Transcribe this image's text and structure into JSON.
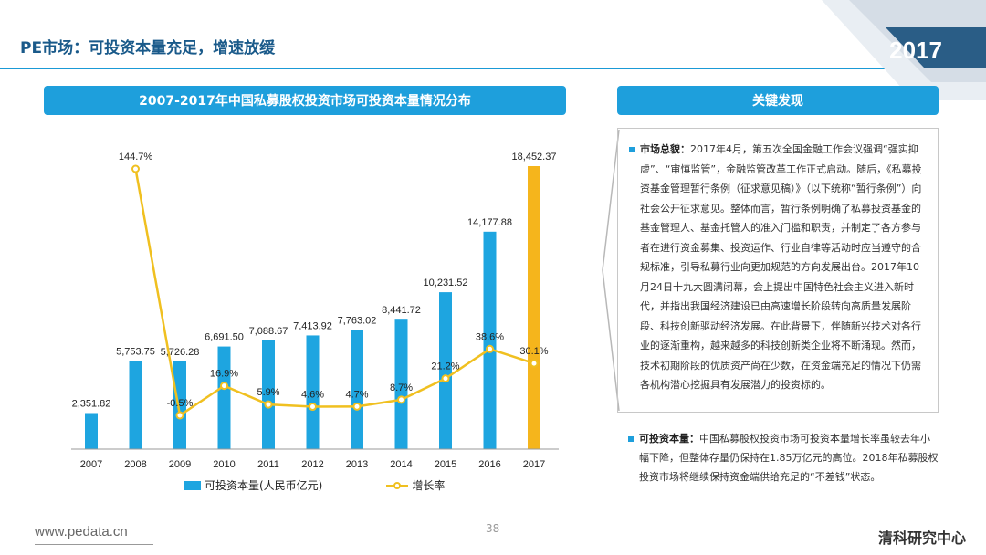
{
  "page": {
    "title": "PE市场：可投资本量充足，增速放缓",
    "year_badge": "2017",
    "footer_url": "www.pedata.cn",
    "page_number": "38",
    "brand": "清科研究中心"
  },
  "colors": {
    "accent": "#1e9fdc",
    "bar": "#1ea5e0",
    "bar_highlight": "#f5b51c",
    "line": "#f0c020"
  },
  "findings": {
    "header": "关键发现",
    "items": [
      {
        "label": "市场总貌：",
        "text": "2017年4月，第五次全国金融工作会议强调“强实抑虚”、“审慎监管”，金融监管改革工作正式启动。随后，《私募投资基金管理暂行条例（征求意见稿）》（以下统称“暂行条例”）向社会公开征求意见。整体而言，暂行条例明确了私募投资基金的基金管理人、基金托管人的准入门槛和职责，并制定了各方参与者在进行资金募集、投资运作、行业自律等活动时应当遵守的合规标准，引导私募行业向更加规范的方向发展出台。2017年10月24日十九大圆满闭幕，会上提出中国特色社会主义进入新时代，并指出我国经济建设已由高速增长阶段转向高质量发展阶段、科技创新驱动经济发展。在此背景下，伴随新兴技术对各行业的逐渐重构，越来越多的科技创新类企业将不断涌现。然而，技术初期阶段的优质资产尚在少数，在资金端充足的情况下仍需各机构潜心挖掘具有发展潜力的投资标的。"
      },
      {
        "label": "可投资本量：",
        "text": "中国私募股权投资市场可投资本量增长率虽较去年小幅下降，但整体存量仍保持在1.85万亿元的高位。2018年私募股权投资市场将继续保持资金端供给充足的“不差钱”状态。"
      }
    ]
  },
  "chart_data": {
    "type": "bar",
    "title": "2007-2017年中国私募股权投资市场可投资本量情况分布",
    "categories": [
      "2007",
      "2008",
      "2009",
      "2010",
      "2011",
      "2012",
      "2013",
      "2014",
      "2015",
      "2016",
      "2017"
    ],
    "series": [
      {
        "name": "可投资本量(人民币亿元)",
        "type": "bar",
        "values": [
          2351.82,
          5753.75,
          5726.28,
          6691.5,
          7088.67,
          7413.92,
          7763.02,
          8441.72,
          10231.52,
          14177.88,
          18452.37
        ],
        "labels": [
          "2,351.82",
          "5,753.75",
          "5,726.28",
          "6,691.50",
          "7,088.67",
          "7,413.92",
          "7,763.02",
          "8,441.72",
          "10,231.52",
          "14,177.88",
          "18,452.37"
        ]
      },
      {
        "name": "增长率",
        "type": "line",
        "values": [
          null,
          144.7,
          -0.5,
          16.9,
          5.9,
          4.6,
          4.7,
          8.7,
          21.2,
          38.6,
          30.1
        ],
        "labels": [
          "",
          "144.7%",
          "-0.5%",
          "16.9%",
          "5.9%",
          "4.6%",
          "4.7%",
          "8.7%",
          "21.2%",
          "38.6%",
          "30.1%"
        ]
      }
    ],
    "highlight_index": 10,
    "ylim_bar": [
      0,
      18452.37
    ],
    "ylim_line": [
      -0.5,
      144.7
    ],
    "grid": false,
    "legend_position": "bottom"
  }
}
